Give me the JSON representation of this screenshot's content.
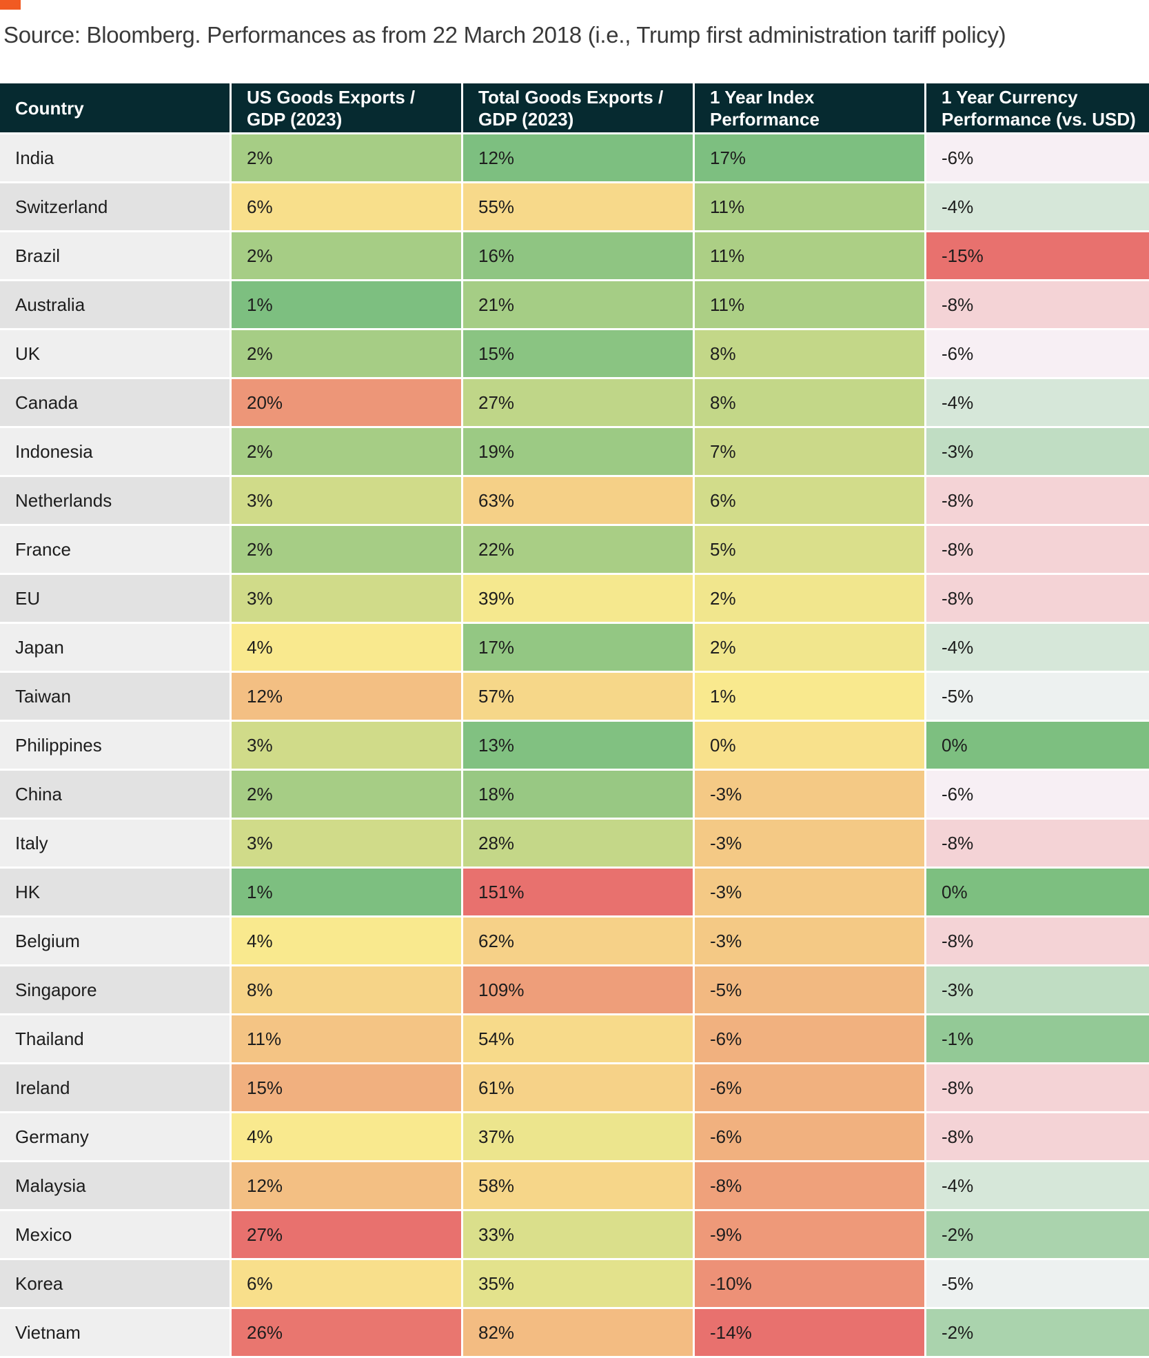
{
  "source_note": "Source: Bloomberg. Performances as from 22 March 2018 (i.e., Trump first administration tariff policy)",
  "colors": {
    "header_bg": "#062a30",
    "accent": "#f15a22",
    "green": "#7dbf80",
    "yellow": "#f9e98e",
    "red": "#e8716e",
    "white": "#f8f6fb"
  },
  "chart_data": {
    "type": "table",
    "columns": [
      "Country",
      "US Goods Exports / GDP (2023)",
      "Total Goods Exports / GDP (2023)",
      "1 Year Index Performance",
      "1 Year Currency Performance (vs. USD)"
    ],
    "rows": [
      {
        "country": "India",
        "us_exports_gdp": "2%",
        "total_exports_gdp": "12%",
        "index_perf": "17%",
        "currency_perf": "-6%"
      },
      {
        "country": "Switzerland",
        "us_exports_gdp": "6%",
        "total_exports_gdp": "55%",
        "index_perf": "11%",
        "currency_perf": "-4%"
      },
      {
        "country": "Brazil",
        "us_exports_gdp": "2%",
        "total_exports_gdp": "16%",
        "index_perf": "11%",
        "currency_perf": "-15%"
      },
      {
        "country": "Australia",
        "us_exports_gdp": "1%",
        "total_exports_gdp": "21%",
        "index_perf": "11%",
        "currency_perf": "-8%"
      },
      {
        "country": "UK",
        "us_exports_gdp": "2%",
        "total_exports_gdp": "15%",
        "index_perf": "8%",
        "currency_perf": "-6%"
      },
      {
        "country": "Canada",
        "us_exports_gdp": "20%",
        "total_exports_gdp": "27%",
        "index_perf": "8%",
        "currency_perf": "-4%"
      },
      {
        "country": "Indonesia",
        "us_exports_gdp": "2%",
        "total_exports_gdp": "19%",
        "index_perf": "7%",
        "currency_perf": "-3%"
      },
      {
        "country": "Netherlands",
        "us_exports_gdp": "3%",
        "total_exports_gdp": "63%",
        "index_perf": "6%",
        "currency_perf": "-8%"
      },
      {
        "country": "France",
        "us_exports_gdp": "2%",
        "total_exports_gdp": "22%",
        "index_perf": "5%",
        "currency_perf": "-8%"
      },
      {
        "country": "EU",
        "us_exports_gdp": "3%",
        "total_exports_gdp": "39%",
        "index_perf": "2%",
        "currency_perf": "-8%"
      },
      {
        "country": "Japan",
        "us_exports_gdp": "4%",
        "total_exports_gdp": "17%",
        "index_perf": "2%",
        "currency_perf": "-4%"
      },
      {
        "country": "Taiwan",
        "us_exports_gdp": "12%",
        "total_exports_gdp": "57%",
        "index_perf": "1%",
        "currency_perf": "-5%"
      },
      {
        "country": "Philippines",
        "us_exports_gdp": "3%",
        "total_exports_gdp": "13%",
        "index_perf": "0%",
        "currency_perf": "0%"
      },
      {
        "country": "China",
        "us_exports_gdp": "2%",
        "total_exports_gdp": "18%",
        "index_perf": "-3%",
        "currency_perf": "-6%"
      },
      {
        "country": "Italy",
        "us_exports_gdp": "3%",
        "total_exports_gdp": "28%",
        "index_perf": "-3%",
        "currency_perf": "-8%"
      },
      {
        "country": "HK",
        "us_exports_gdp": "1%",
        "total_exports_gdp": "151%",
        "index_perf": "-3%",
        "currency_perf": "0%"
      },
      {
        "country": "Belgium",
        "us_exports_gdp": "4%",
        "total_exports_gdp": "62%",
        "index_perf": "-3%",
        "currency_perf": "-8%"
      },
      {
        "country": "Singapore",
        "us_exports_gdp": "8%",
        "total_exports_gdp": "109%",
        "index_perf": "-5%",
        "currency_perf": "-3%"
      },
      {
        "country": "Thailand",
        "us_exports_gdp": "11%",
        "total_exports_gdp": "54%",
        "index_perf": "-6%",
        "currency_perf": "-1%"
      },
      {
        "country": "Ireland",
        "us_exports_gdp": "15%",
        "total_exports_gdp": "61%",
        "index_perf": "-6%",
        "currency_perf": "-8%"
      },
      {
        "country": "Germany",
        "us_exports_gdp": "4%",
        "total_exports_gdp": "37%",
        "index_perf": "-6%",
        "currency_perf": "-8%"
      },
      {
        "country": "Malaysia",
        "us_exports_gdp": "12%",
        "total_exports_gdp": "58%",
        "index_perf": "-8%",
        "currency_perf": "-4%"
      },
      {
        "country": "Mexico",
        "us_exports_gdp": "27%",
        "total_exports_gdp": "33%",
        "index_perf": "-9%",
        "currency_perf": "-2%"
      },
      {
        "country": "Korea",
        "us_exports_gdp": "6%",
        "total_exports_gdp": "35%",
        "index_perf": "-10%",
        "currency_perf": "-5%"
      },
      {
        "country": "Vietnam",
        "us_exports_gdp": "26%",
        "total_exports_gdp": "82%",
        "index_perf": "-14%",
        "currency_perf": "-2%"
      }
    ]
  }
}
